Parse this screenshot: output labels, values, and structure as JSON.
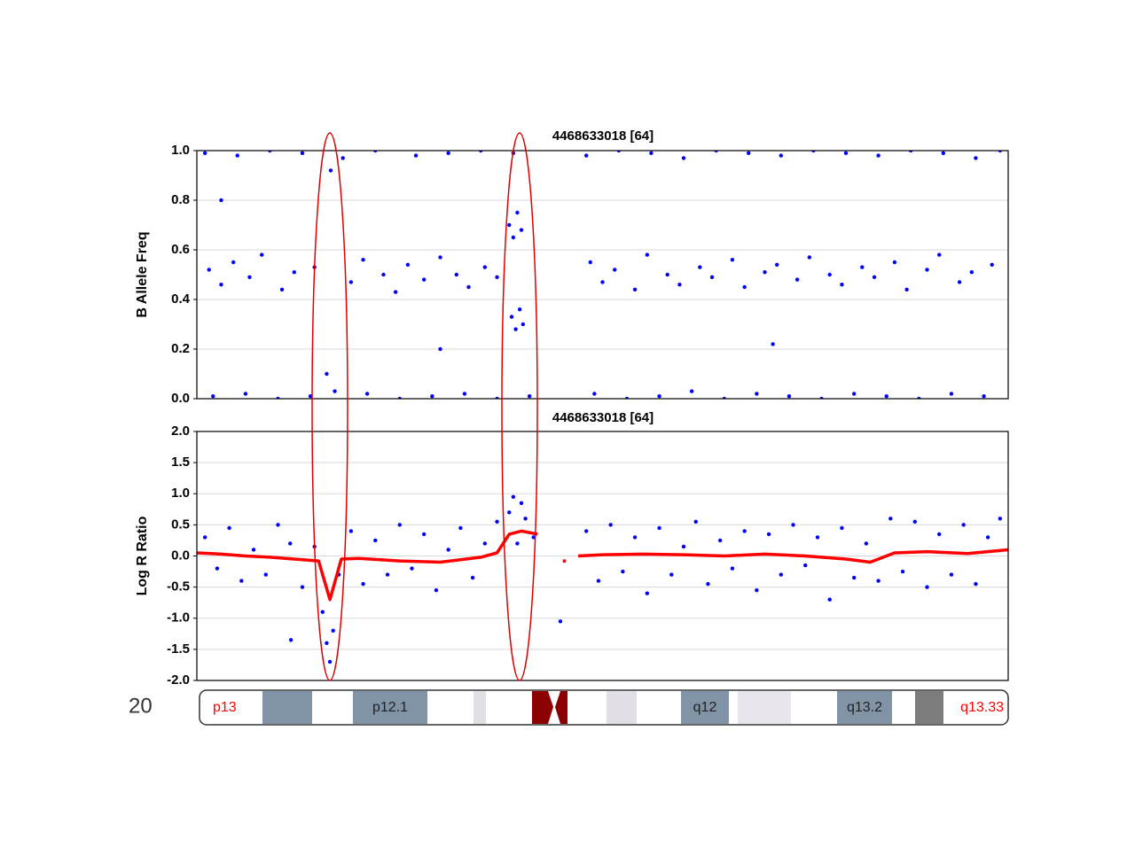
{
  "chart_data": [
    {
      "type": "scatter",
      "title": "4468633018 [64]",
      "y_label": "B Allele Freq",
      "color": "#0000ff",
      "grid": true,
      "xlim": [
        0,
        100
      ],
      "ylim": [
        0,
        1
      ],
      "yticks": [
        {
          "value": 0,
          "label": "0.0"
        },
        {
          "value": 0.2,
          "label": "0.2"
        },
        {
          "value": 0.4,
          "label": "0.4"
        },
        {
          "value": 0.6,
          "label": "0.6"
        },
        {
          "value": 0.8,
          "label": "0.8"
        },
        {
          "value": 1,
          "label": "1.0"
        }
      ],
      "series": [
        {
          "color": "#0000ff",
          "x": [
            1,
            5,
            9,
            13,
            18,
            22,
            27,
            31,
            35,
            39,
            48,
            52,
            56,
            60,
            64,
            68,
            72,
            76,
            80,
            84,
            88,
            92,
            96,
            99,
            2,
            6,
            10,
            14,
            17,
            21,
            25,
            29,
            33,
            37,
            41,
            49,
            53,
            57,
            61,
            65,
            69,
            73,
            77,
            81,
            85,
            89,
            93,
            97,
            1.5,
            3,
            4.5,
            6.5,
            8,
            10.5,
            12,
            14.5,
            19,
            20.5,
            23,
            24.5,
            26,
            28,
            30,
            32,
            33.5,
            35.5,
            37,
            48.5,
            50,
            51.5,
            54,
            55.5,
            58,
            59.5,
            62,
            63.5,
            66,
            67.5,
            70,
            71.5,
            74,
            75.5,
            78,
            79.5,
            82,
            83.5,
            86,
            87.5,
            90,
            91.5,
            94,
            95.5,
            98,
            38.5,
            39,
            39.5,
            40,
            40.2,
            38.8,
            39.3,
            39.8,
            3,
            16,
            16.5,
            30,
            71
          ],
          "values": [
            0.99,
            0.98,
            1,
            0.99,
            0.97,
            1,
            0.98,
            0.99,
            1,
            0.99,
            0.98,
            1,
            0.99,
            0.97,
            1,
            0.99,
            0.98,
            1,
            0.99,
            0.98,
            1,
            0.99,
            0.97,
            1,
            0.01,
            0.02,
            0,
            0.01,
            0.03,
            0.02,
            0,
            0.01,
            0.02,
            0,
            0.01,
            0.02,
            0,
            0.01,
            0.03,
            0,
            0.02,
            0.01,
            0,
            0.02,
            0.01,
            0,
            0.02,
            0.01,
            0.52,
            0.46,
            0.55,
            0.49,
            0.58,
            0.44,
            0.51,
            0.53,
            0.47,
            0.56,
            0.5,
            0.43,
            0.54,
            0.48,
            0.57,
            0.5,
            0.45,
            0.53,
            0.49,
            0.55,
            0.47,
            0.52,
            0.44,
            0.58,
            0.5,
            0.46,
            0.53,
            0.49,
            0.56,
            0.45,
            0.51,
            0.54,
            0.48,
            0.57,
            0.5,
            0.46,
            0.53,
            0.49,
            0.55,
            0.44,
            0.52,
            0.58,
            0.47,
            0.51,
            0.54,
            0.7,
            0.65,
            0.75,
            0.68,
            0.3,
            0.33,
            0.28,
            0.36,
            0.8,
            0.1,
            0.92,
            0.2,
            0.22
          ]
        }
      ]
    },
    {
      "type": "scatter",
      "title": "4468633018 [64]",
      "y_label": "Log R Ratio",
      "grid": true,
      "xlim": [
        0,
        100
      ],
      "ylim": [
        -2,
        2
      ],
      "yticks": [
        {
          "value": -2,
          "label": "-2.0"
        },
        {
          "value": -1.5,
          "label": "-1.5"
        },
        {
          "value": -1,
          "label": "-1.0"
        },
        {
          "value": -0.5,
          "label": "-0.5"
        },
        {
          "value": 0,
          "label": "0.0"
        },
        {
          "value": 0.5,
          "label": "0.5"
        },
        {
          "value": 1,
          "label": "1.0"
        },
        {
          "value": 1.5,
          "label": "1.5"
        },
        {
          "value": 2,
          "label": "2.0"
        }
      ],
      "series": [
        {
          "color": "#0000ff",
          "x": [
            1,
            2.5,
            4,
            5.5,
            7,
            8.5,
            10,
            11.5,
            13,
            14.5,
            15.5,
            16,
            16.4,
            16.8,
            17.5,
            19,
            20.5,
            22,
            23.5,
            25,
            26.5,
            28,
            29.5,
            31,
            32.5,
            34,
            35.5,
            37,
            38.5,
            39,
            39.5,
            40,
            40.5,
            41.5,
            48,
            49.5,
            51,
            52.5,
            54,
            55.5,
            57,
            58.5,
            60,
            61.5,
            63,
            64.5,
            66,
            67.5,
            69,
            70.5,
            72,
            73.5,
            75,
            76.5,
            78,
            79.5,
            81,
            82.5,
            84,
            85.5,
            87,
            88.5,
            90,
            91.5,
            93,
            94.5,
            96,
            97.5,
            99,
            11.6,
            44.8
          ],
          "values": [
            0.3,
            -0.2,
            0.45,
            -0.4,
            0.1,
            -0.3,
            0.5,
            0.2,
            -0.5,
            0.15,
            -0.9,
            -1.4,
            -1.7,
            -1.2,
            -0.3,
            0.4,
            -0.45,
            0.25,
            -0.3,
            0.5,
            -0.2,
            0.35,
            -0.55,
            0.1,
            0.45,
            -0.35,
            0.2,
            0.55,
            0.7,
            0.95,
            0.2,
            0.85,
            0.6,
            0.3,
            0.4,
            -0.4,
            0.5,
            -0.25,
            0.3,
            -0.6,
            0.45,
            -0.3,
            0.15,
            0.55,
            -0.45,
            0.25,
            -0.2,
            0.4,
            -0.55,
            0.35,
            -0.3,
            0.5,
            -0.15,
            0.3,
            -0.7,
            0.45,
            -0.35,
            0.2,
            -0.4,
            0.6,
            -0.25,
            0.55,
            -0.5,
            0.35,
            -0.3,
            0.5,
            -0.45,
            0.3,
            0.6,
            -1.35,
            -1.05
          ]
        },
        {
          "color": "#ff0000",
          "type": "line",
          "x": [
            0,
            3,
            6,
            9,
            12,
            15,
            16.4,
            17.8,
            20,
            25,
            30,
            35,
            37,
            38.5,
            40,
            42,
            43,
            45.1,
            45.5,
            46,
            47,
            50,
            55,
            60,
            65,
            70,
            75,
            80,
            83,
            86,
            90,
            95,
            100
          ],
          "values": [
            0.05,
            0.03,
            0,
            -0.02,
            -0.05,
            -0.08,
            -0.7,
            -0.05,
            -0.04,
            -0.08,
            -0.1,
            -0.02,
            0.05,
            0.35,
            0.4,
            0.35,
            null,
            -0.08,
            -0.08,
            null,
            0,
            0.02,
            0.03,
            0.02,
            0,
            0.03,
            0,
            -0.05,
            -0.1,
            0.05,
            0.07,
            0.04,
            0.1
          ]
        }
      ]
    }
  ],
  "ideogram": {
    "chromosome": "20",
    "bands": [
      "p13",
      "p12.1",
      "q12",
      "q13.2",
      "q13.33"
    ]
  }
}
